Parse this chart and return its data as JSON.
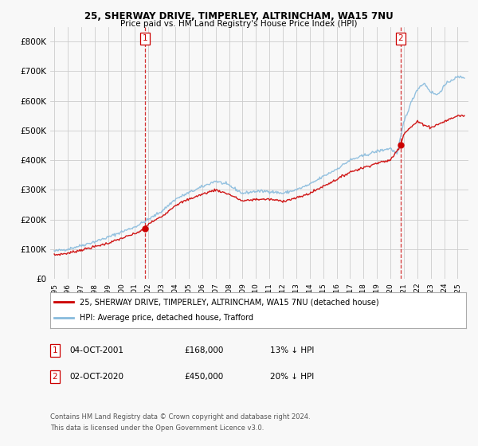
{
  "title1": "25, SHERWAY DRIVE, TIMPERLEY, ALTRINCHAM, WA15 7NU",
  "title2": "Price paid vs. HM Land Registry's House Price Index (HPI)",
  "legend_line1": "25, SHERWAY DRIVE, TIMPERLEY, ALTRINCHAM, WA15 7NU (detached house)",
  "legend_line2": "HPI: Average price, detached house, Trafford",
  "sale1_label": "1",
  "sale1_date": "04-OCT-2001",
  "sale1_price": "£168,000",
  "sale1_hpi": "13% ↓ HPI",
  "sale1_year": 2001.75,
  "sale1_value": 168000,
  "sale2_label": "2",
  "sale2_date": "02-OCT-2020",
  "sale2_price": "£450,000",
  "sale2_hpi": "20% ↓ HPI",
  "sale2_year": 2020.75,
  "sale2_value": 450000,
  "footnote1": "Contains HM Land Registry data © Crown copyright and database right 2024.",
  "footnote2": "This data is licensed under the Open Government Licence v3.0.",
  "red_color": "#cc0000",
  "blue_color": "#88bbdd",
  "background_color": "#f8f8f8",
  "grid_color": "#cccccc",
  "ylim_max": 850000,
  "xlim_start": 1994.7,
  "xlim_end": 2025.8,
  "hpi_key_years": [
    1995,
    1996,
    1997,
    1998,
    1999,
    2000,
    2001,
    2002,
    2003,
    2004,
    2005,
    2006,
    2007,
    2008,
    2009,
    2010,
    2011,
    2012,
    2013,
    2014,
    2015,
    2016,
    2017,
    2018,
    2019,
    2020,
    2020.5,
    2021,
    2021.5,
    2022,
    2022.5,
    2023,
    2023.5,
    2024,
    2024.5,
    2025
  ],
  "hpi_key_vals": [
    93000,
    100000,
    112000,
    125000,
    140000,
    158000,
    175000,
    200000,
    228000,
    268000,
    290000,
    310000,
    330000,
    315000,
    288000,
    295000,
    295000,
    288000,
    300000,
    318000,
    345000,
    370000,
    400000,
    415000,
    430000,
    440000,
    420000,
    530000,
    590000,
    640000,
    660000,
    630000,
    620000,
    650000,
    670000,
    680000
  ],
  "red_key_years": [
    1995,
    1996,
    1997,
    1998,
    1999,
    2000,
    2001,
    2001.75,
    2002,
    2003,
    2004,
    2005,
    2006,
    2007,
    2008,
    2009,
    2010,
    2011,
    2012,
    2013,
    2014,
    2015,
    2016,
    2017,
    2018,
    2019,
    2020,
    2020.75,
    2021,
    2022,
    2023,
    2024,
    2025
  ],
  "red_key_vals": [
    80000,
    86000,
    97000,
    108000,
    120000,
    136000,
    152000,
    168000,
    185000,
    210000,
    248000,
    268000,
    285000,
    300000,
    285000,
    262000,
    268000,
    268000,
    262000,
    272000,
    288000,
    312000,
    335000,
    360000,
    375000,
    390000,
    400000,
    450000,
    490000,
    530000,
    510000,
    530000,
    550000
  ]
}
